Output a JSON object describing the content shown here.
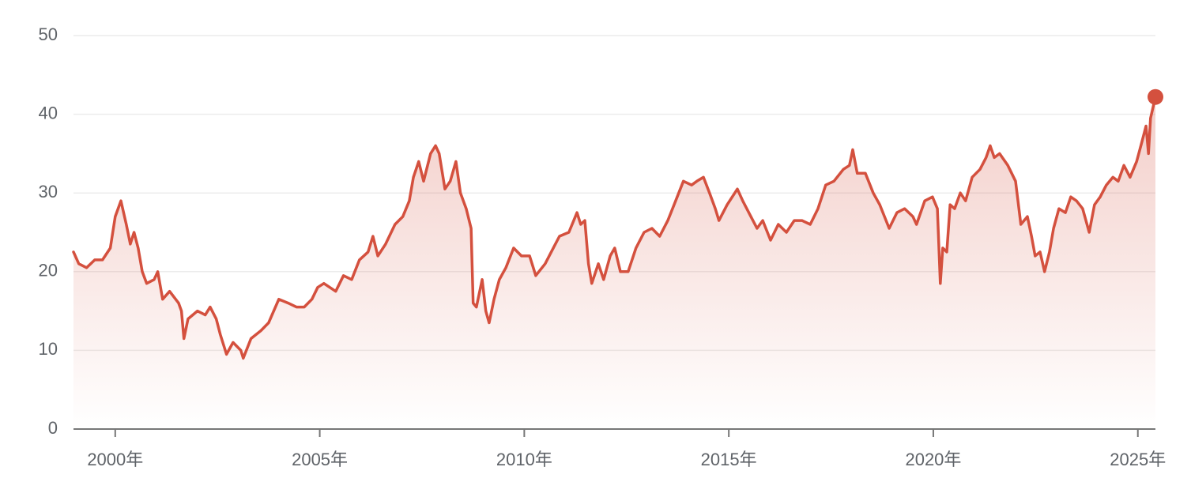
{
  "chart_data": {
    "type": "line",
    "color": "#d4503e",
    "grid": true,
    "area_fill": true,
    "end_marker": true,
    "xlim": [
      1998.98,
      2025.43
    ],
    "ylim": [
      0,
      50
    ],
    "yticks": [
      0,
      10,
      20,
      30,
      40,
      50
    ],
    "xticks": [
      {
        "value": 2000,
        "label": "2000年"
      },
      {
        "value": 2005,
        "label": "2005年"
      },
      {
        "value": 2010,
        "label": "2010年"
      },
      {
        "value": 2015,
        "label": "2015年"
      },
      {
        "value": 2020,
        "label": "2020年"
      },
      {
        "value": 2025,
        "label": "2025年"
      }
    ],
    "x": [
      1998.98,
      1999.11,
      1999.3,
      1999.5,
      1999.69,
      1999.88,
      2000.0,
      2000.14,
      2000.27,
      2000.37,
      2000.46,
      2000.56,
      2000.66,
      2000.77,
      2000.95,
      2001.04,
      2001.16,
      2001.33,
      2001.55,
      2001.62,
      2001.68,
      2001.78,
      2002.01,
      2002.2,
      2002.32,
      2002.47,
      2002.57,
      2002.72,
      2002.88,
      2003.07,
      2003.13,
      2003.32,
      2003.56,
      2003.75,
      2004.0,
      2004.23,
      2004.43,
      2004.62,
      2004.81,
      2004.95,
      2005.1,
      2005.39,
      2005.58,
      2005.78,
      2005.97,
      2006.18,
      2006.3,
      2006.42,
      2006.61,
      2006.84,
      2007.03,
      2007.19,
      2007.29,
      2007.42,
      2007.54,
      2007.71,
      2007.83,
      2007.92,
      2008.06,
      2008.19,
      2008.33,
      2008.44,
      2008.58,
      2008.7,
      2008.75,
      2008.83,
      2008.97,
      2009.06,
      2009.14,
      2009.26,
      2009.39,
      2009.55,
      2009.74,
      2009.93,
      2010.13,
      2010.28,
      2010.51,
      2010.71,
      2010.86,
      2011.09,
      2011.29,
      2011.38,
      2011.48,
      2011.57,
      2011.65,
      2011.81,
      2011.94,
      2012.1,
      2012.21,
      2012.35,
      2012.54,
      2012.73,
      2012.93,
      2013.12,
      2013.31,
      2013.51,
      2013.7,
      2013.89,
      2014.09,
      2014.22,
      2014.38,
      2014.53,
      2014.67,
      2014.76,
      2014.96,
      2015.21,
      2015.34,
      2015.54,
      2015.69,
      2015.83,
      2016.02,
      2016.21,
      2016.41,
      2016.6,
      2016.79,
      2016.99,
      2017.18,
      2017.37,
      2017.57,
      2017.8,
      2017.95,
      2018.03,
      2018.14,
      2018.34,
      2018.53,
      2018.69,
      2018.92,
      2019.11,
      2019.3,
      2019.5,
      2019.59,
      2019.79,
      2019.98,
      2020.1,
      2020.17,
      2020.23,
      2020.33,
      2020.41,
      2020.52,
      2020.66,
      2020.79,
      2020.95,
      2021.14,
      2021.29,
      2021.39,
      2021.49,
      2021.62,
      2021.82,
      2022.01,
      2022.14,
      2022.3,
      2022.4,
      2022.49,
      2022.61,
      2022.72,
      2022.84,
      2022.94,
      2023.07,
      2023.23,
      2023.36,
      2023.5,
      2023.65,
      2023.81,
      2023.94,
      2024.08,
      2024.23,
      2024.39,
      2024.52,
      2024.66,
      2024.81,
      2024.97,
      2025.1,
      2025.2,
      2025.26,
      2025.31,
      2025.43
    ],
    "values": [
      22.5,
      21,
      20.5,
      21.5,
      21.5,
      23,
      27,
      29,
      26,
      23.5,
      25,
      23,
      20,
      18.5,
      19,
      20,
      16.5,
      17.5,
      16,
      15,
      11.5,
      14,
      15,
      14.5,
      15.5,
      14,
      12,
      9.5,
      11,
      10,
      9,
      11.5,
      12.5,
      13.5,
      16.5,
      16,
      15.5,
      15.5,
      16.5,
      18,
      18.5,
      17.5,
      19.5,
      19,
      21.5,
      22.5,
      24.5,
      22,
      23.5,
      26,
      27,
      29,
      32,
      34,
      31.5,
      35,
      36,
      35,
      30.5,
      31.5,
      34,
      30,
      28,
      25.5,
      16,
      15.5,
      19,
      15,
      13.5,
      16.5,
      19,
      20.5,
      23,
      22,
      22,
      19.5,
      21,
      23,
      24.5,
      25,
      27.5,
      26,
      26.5,
      21,
      18.5,
      21,
      19,
      22,
      23,
      20,
      20,
      23,
      25,
      25.5,
      24.5,
      26.5,
      29,
      31.5,
      31,
      31.5,
      32,
      30,
      28,
      26.5,
      28.5,
      30.5,
      29,
      27,
      25.5,
      26.5,
      24,
      26,
      25,
      26.5,
      26.5,
      26,
      28,
      31,
      31.5,
      33,
      33.5,
      35.5,
      32.5,
      32.5,
      30,
      28.5,
      25.5,
      27.5,
      28,
      27,
      26,
      29,
      29.5,
      28,
      18.5,
      23,
      22.5,
      28.5,
      28,
      30,
      29,
      32,
      33,
      34.5,
      36,
      34.5,
      35,
      33.5,
      31.5,
      26,
      27,
      24.5,
      22,
      22.5,
      20,
      22.5,
      25.5,
      28,
      27.5,
      29.5,
      29,
      28,
      25,
      28.5,
      29.5,
      31,
      32,
      31.5,
      33.5,
      32,
      34,
      36.5,
      38.5,
      35,
      39.5,
      42.2
    ]
  }
}
